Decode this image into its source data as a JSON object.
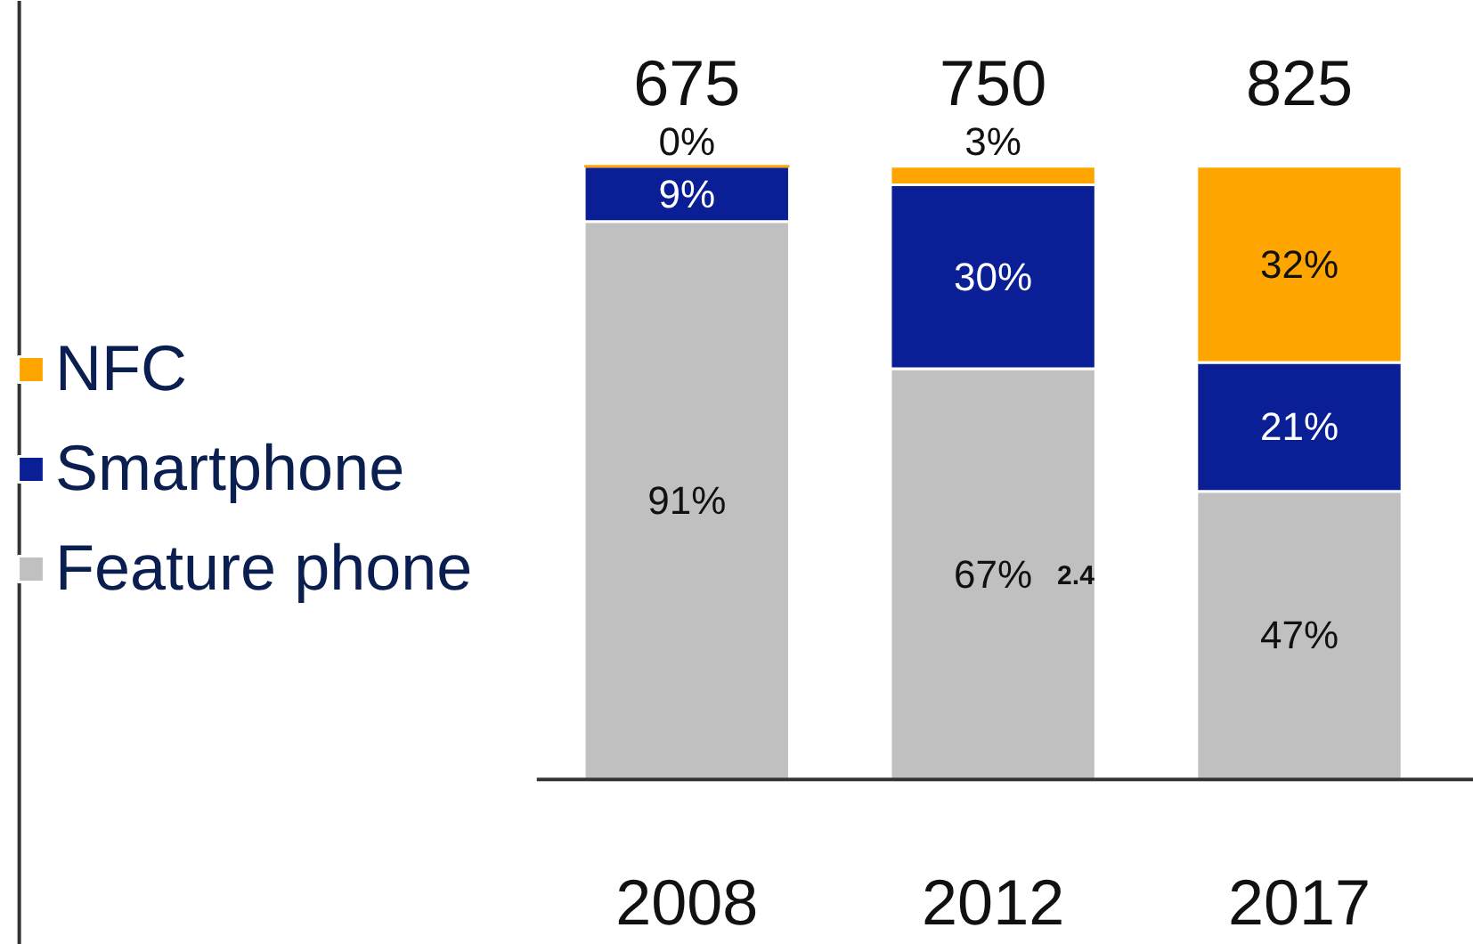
{
  "chart_data": {
    "type": "bar",
    "stacked": true,
    "categories": [
      "2008",
      "2012",
      "2017"
    ],
    "series": [
      {
        "name": "Feature phone",
        "color": "#c0c0c0",
        "values": [
          91,
          67,
          47
        ],
        "value_labels": [
          "91%",
          "67%",
          "47%"
        ]
      },
      {
        "name": "Smartphone",
        "color": "#0a1e96",
        "values": [
          9,
          30,
          21
        ],
        "value_labels": [
          "9%",
          "30%",
          "21%"
        ]
      },
      {
        "name": "NFC",
        "color": "#ffa500",
        "values": [
          0,
          3,
          32
        ],
        "value_labels": [
          "0%",
          "3%",
          "32%"
        ]
      }
    ],
    "annotations": [
      "2.4",
      {
        "text": "675",
        "x": "2008",
        "y": 100
      },
      {
        "text": "750",
        "x": "2012",
        "y": 100
      },
      {
        "text": "825",
        "x": "2017",
        "y": 100
      }
    ],
    "legend": "left",
    "grid": false
  }
}
